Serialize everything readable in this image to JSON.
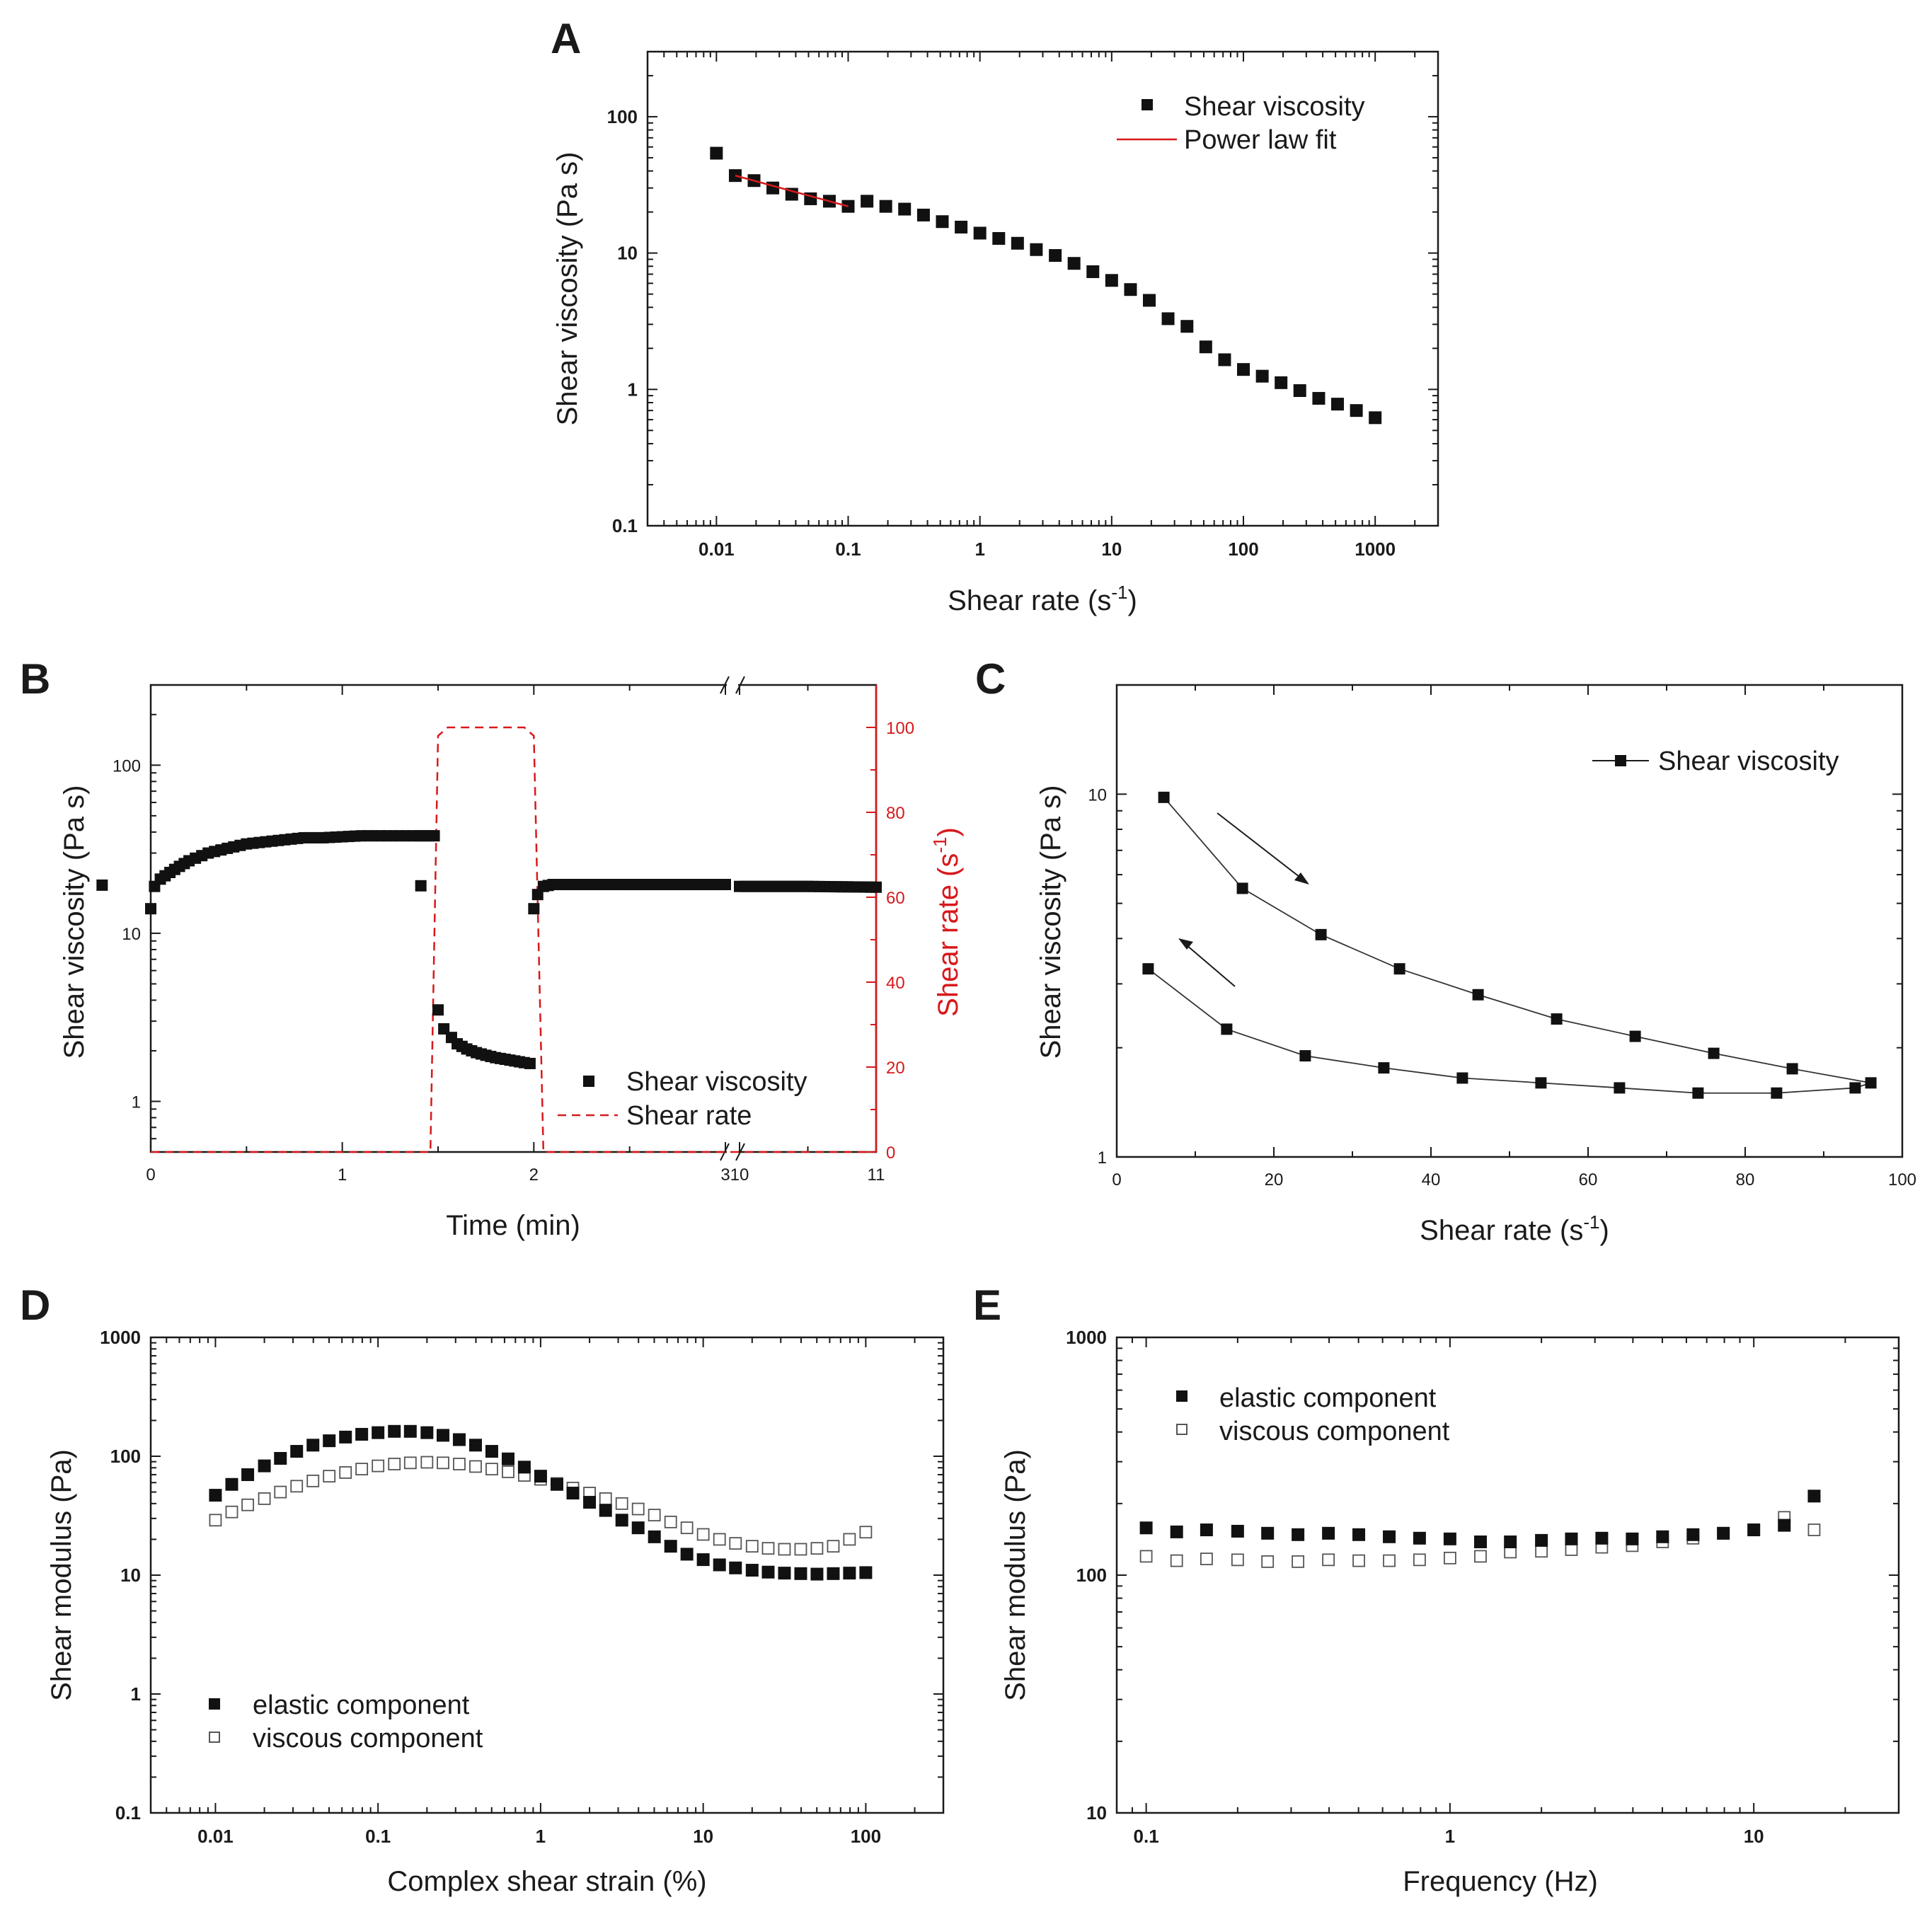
{
  "chart_data": [
    {
      "panel": "A",
      "type": "scatter",
      "xlabel": "Shear rate (s",
      "xlabel_sup": "-1",
      "xlabel_end": ")",
      "ylabel": "Shear viscosity (Pa s)",
      "xscale": "log",
      "yscale": "log",
      "xlim": [
        0.003,
        3000
      ],
      "ylim": [
        0.1,
        300
      ],
      "xticks": [
        {
          "v": 0.01,
          "label": "0.01"
        },
        {
          "v": 0.1,
          "label": "0.1"
        },
        {
          "v": 1,
          "label": "1"
        },
        {
          "v": 10,
          "label": "10"
        },
        {
          "v": 100,
          "label": "100"
        },
        {
          "v": 1000,
          "label": "1000"
        }
      ],
      "yticks": [
        {
          "v": 0.1,
          "label": "0.1"
        },
        {
          "v": 1,
          "label": "1"
        },
        {
          "v": 10,
          "label": "10"
        },
        {
          "v": 100,
          "label": "100"
        }
      ],
      "legend": [
        "Shear viscosity",
        "Power law fit"
      ],
      "legend_position": "top-right",
      "series": [
        {
          "name": "Shear viscosity",
          "marker": "filled-square",
          "x": [
            0.01,
            0.0139,
            0.0193,
            0.0268,
            0.0373,
            0.0518,
            0.072,
            0.1,
            0.139,
            0.193,
            0.268,
            0.373,
            0.518,
            0.72,
            1,
            1.39,
            1.93,
            2.68,
            3.73,
            5.18,
            7.2,
            10,
            13.9,
            19.3,
            26.8,
            37.3,
            51.8,
            72,
            100,
            139,
            193,
            268,
            373,
            518,
            720,
            1000
          ],
          "y": [
            54,
            37,
            34,
            30,
            27,
            25,
            24,
            22,
            24,
            22,
            21,
            19,
            17,
            15.5,
            14,
            12.8,
            11.8,
            10.6,
            9.6,
            8.4,
            7.3,
            6.3,
            5.4,
            4.5,
            3.3,
            2.9,
            2.05,
            1.65,
            1.4,
            1.25,
            1.12,
            0.98,
            0.86,
            0.78,
            0.7,
            0.62
          ]
        },
        {
          "name": "Power law fit",
          "line": "red-solid",
          "x": [
            0.0139,
            0.1
          ],
          "y": [
            37,
            22
          ]
        }
      ]
    },
    {
      "panel": "B",
      "type": "line",
      "xlabel": "Time (min)",
      "ylabel": "Shear viscosity (Pa s)",
      "ylabel_right": "Shear rate (s",
      "ylabel_right_sup": "-1",
      "ylabel_right_end": ")",
      "xaxis_break": [
        3,
        10
      ],
      "xticks": [
        "0",
        "1",
        "2",
        "3",
        "10",
        "11"
      ],
      "ylim_left": [
        0.5,
        300
      ],
      "yticks_left": [
        "1",
        "10",
        "100"
      ],
      "ylim_right": [
        0,
        110
      ],
      "yticks_right": [
        "0",
        "20",
        "40",
        "60",
        "80",
        "100"
      ],
      "legend": [
        "Shear viscosity",
        "Shear rate"
      ],
      "legend_position": "bottom-right",
      "series": [
        {
          "name": "Shear viscosity",
          "axis": "left",
          "segments": [
            {
              "x": [
                0,
                0.02,
                0.05,
                0.1,
                0.15,
                0.2,
                0.3,
                0.4,
                0.5,
                0.6,
                0.7,
                0.8,
                0.9,
                1.0,
                1.1,
                1.2,
                1.3,
                1.4,
                1.48
              ],
              "y": [
                14,
                19,
                21,
                23,
                25,
                27,
                30,
                32,
                34,
                35,
                36,
                37,
                37,
                37.5,
                38,
                38,
                38,
                38,
                38
              ]
            },
            {
              "x": [
                1.5,
                1.53,
                1.57,
                1.6,
                1.65,
                1.7,
                1.75,
                1.8,
                1.85,
                1.9,
                1.95,
                1.98
              ],
              "y": [
                3.5,
                2.7,
                2.4,
                2.2,
                2.05,
                1.95,
                1.88,
                1.82,
                1.78,
                1.74,
                1.7,
                1.68
              ]
            },
            {
              "x": [
                2.0,
                2.02,
                2.05,
                2.1,
                2.2,
                2.5,
                3.0,
                10.0,
                10.5,
                11.0
              ],
              "y": [
                14,
                17,
                19,
                19.5,
                19.5,
                19.5,
                19.5,
                19,
                19,
                18.8
              ]
            }
          ]
        },
        {
          "name": "Shear rate",
          "axis": "right",
          "line": "red-dashed",
          "x": [
            0,
            1.46,
            1.5,
            1.55,
            1.95,
            2.0,
            2.05,
            11
          ],
          "y": [
            0,
            0,
            98,
            100,
            100,
            98,
            0,
            0
          ]
        }
      ]
    },
    {
      "panel": "C",
      "type": "line",
      "xlabel": "Shear rate (s",
      "xlabel_sup": "-1",
      "xlabel_end": ")",
      "ylabel": "Shear viscosity (Pa s)",
      "xlim": [
        0,
        100
      ],
      "ylim": [
        1,
        20
      ],
      "xticks": [
        "0",
        "20",
        "40",
        "60",
        "80",
        "100"
      ],
      "yticks": [
        "1",
        "10"
      ],
      "legend": [
        "Shear viscosity"
      ],
      "legend_position": "top-right",
      "series": [
        {
          "name": "Shear viscosity (ramp up)",
          "x": [
            6,
            16,
            26,
            36,
            46,
            56,
            66,
            76,
            86,
            96
          ],
          "y": [
            9.8,
            5.5,
            4.1,
            3.3,
            2.8,
            2.4,
            2.15,
            1.93,
            1.75,
            1.6
          ]
        },
        {
          "name": "Shear viscosity (ramp down)",
          "x": [
            94,
            84,
            74,
            64,
            54,
            44,
            34,
            24,
            14,
            4
          ],
          "y": [
            1.55,
            1.5,
            1.5,
            1.55,
            1.6,
            1.65,
            1.76,
            1.9,
            2.25,
            3.3
          ]
        }
      ]
    },
    {
      "panel": "D",
      "type": "scatter",
      "xlabel": "Complex shear strain (%)",
      "ylabel": "Shear modulus (Pa)",
      "xscale": "log",
      "yscale": "log",
      "xlim": [
        0.004,
        300
      ],
      "ylim": [
        0.1,
        1000
      ],
      "xticks": [
        "0.01",
        "0.1",
        "1",
        "10",
        "100"
      ],
      "yticks": [
        "0.1",
        "1",
        "10",
        "100",
        "1000"
      ],
      "legend": [
        "elastic component",
        "viscous component"
      ],
      "legend_position": "bottom-left",
      "series": [
        {
          "name": "elastic component",
          "marker": "filled-square",
          "x": [
            0.01,
            0.0126,
            0.0158,
            0.02,
            0.0251,
            0.0316,
            0.0398,
            0.0501,
            0.0631,
            0.0794,
            0.1,
            0.126,
            0.158,
            0.2,
            0.251,
            0.316,
            0.398,
            0.501,
            0.631,
            0.794,
            1,
            1.26,
            1.58,
            2,
            2.51,
            3.16,
            3.98,
            5.01,
            6.31,
            7.94,
            10,
            12.6,
            15.8,
            20,
            25.1,
            31.6,
            39.8,
            50.1,
            63.1,
            79.4,
            100
          ],
          "y": [
            47,
            58,
            70,
            83,
            96,
            110,
            124,
            135,
            145,
            153,
            158,
            162,
            162,
            158,
            150,
            138,
            124,
            110,
            95,
            81,
            68,
            58,
            49,
            41,
            35,
            29,
            25,
            21,
            17.5,
            15,
            13.5,
            12.2,
            11.5,
            11,
            10.6,
            10.4,
            10.3,
            10.2,
            10.3,
            10.4,
            10.5
          ]
        },
        {
          "name": "viscous component",
          "marker": "open-square",
          "x": [
            0.01,
            0.0126,
            0.0158,
            0.02,
            0.0251,
            0.0316,
            0.0398,
            0.0501,
            0.0631,
            0.0794,
            0.1,
            0.126,
            0.158,
            0.2,
            0.251,
            0.316,
            0.398,
            0.501,
            0.631,
            0.794,
            1,
            1.26,
            1.58,
            2,
            2.51,
            3.16,
            3.98,
            5.01,
            6.31,
            7.94,
            10,
            12.6,
            15.8,
            20,
            25.1,
            31.6,
            39.8,
            50.1,
            63.1,
            79.4,
            100
          ],
          "y": [
            29,
            34,
            39,
            44,
            50,
            56,
            62,
            68,
            73,
            78,
            83,
            86,
            88,
            89,
            88,
            86,
            82,
            78,
            74,
            69,
            64,
            59,
            54,
            49,
            44,
            40,
            36,
            32,
            28,
            25,
            22,
            20,
            18.5,
            17.5,
            16.8,
            16.5,
            16.5,
            16.8,
            17.5,
            20,
            23
          ]
        }
      ]
    },
    {
      "panel": "E",
      "type": "scatter",
      "xlabel": "Frequency (Hz)",
      "ylabel": "Shear modulus (Pa)",
      "xscale": "log",
      "yscale": "log",
      "xlim": [
        0.08,
        30
      ],
      "ylim": [
        10,
        1000
      ],
      "xticks": [
        "0.1",
        "1",
        "10"
      ],
      "yticks": [
        "10",
        "100",
        "1000"
      ],
      "legend": [
        "elastic component",
        "viscous component"
      ],
      "legend_position": "top-left",
      "series": [
        {
          "name": "elastic component",
          "marker": "filled-square",
          "x": [
            0.1,
            0.126,
            0.158,
            0.2,
            0.251,
            0.316,
            0.398,
            0.501,
            0.631,
            0.794,
            1,
            1.26,
            1.58,
            2,
            2.51,
            3.16,
            3.98,
            5.01,
            6.31,
            7.94,
            10,
            12.6,
            15.8
          ],
          "y": [
            158,
            152,
            155,
            153,
            150,
            148,
            150,
            148,
            145,
            143,
            142,
            138,
            138,
            140,
            142,
            143,
            142,
            145,
            148,
            150,
            155,
            162,
            215
          ]
        },
        {
          "name": "viscous component",
          "marker": "open-square",
          "x": [
            0.1,
            0.126,
            0.158,
            0.2,
            0.251,
            0.316,
            0.398,
            0.501,
            0.631,
            0.794,
            1,
            1.26,
            1.58,
            2,
            2.51,
            3.16,
            3.98,
            5.01,
            6.31,
            7.94,
            10,
            12.6,
            15.8
          ],
          "y": [
            120,
            115,
            117,
            116,
            114,
            114,
            116,
            115,
            115,
            116,
            118,
            120,
            125,
            126,
            128,
            131,
            133,
            138,
            143,
            150,
            155,
            175,
            155
          ]
        }
      ]
    }
  ]
}
